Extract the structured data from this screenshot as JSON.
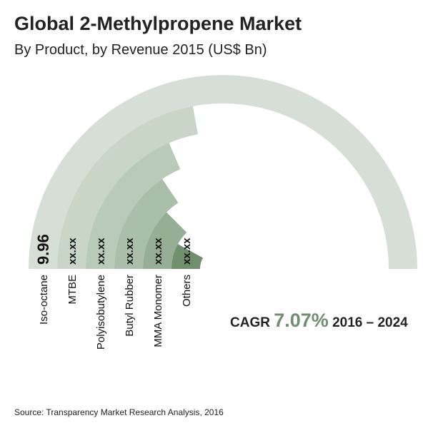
{
  "chart_data": {
    "type": "radial_bar",
    "title": "Global 2-Methylpropene Market",
    "subtitle": "By Product, by Revenue 2015 (US$ Bn)",
    "categories": [
      "Iso-octane",
      "MTBE",
      "Polyisobutylene",
      "Butyl Rubber",
      "MMA Monomer",
      "Others"
    ],
    "values": [
      9.96,
      4.4,
      3.7,
      3.1,
      2.5,
      1.6
    ],
    "value_labels": [
      "9.96",
      "xx.xx",
      "xx.xx",
      "xx.xx",
      "xx.xx",
      "xx.xx"
    ],
    "colors": [
      "#d5dfd5",
      "#c8d5c7",
      "#bacab9",
      "#aabeaa",
      "#97ae96",
      "#6f8f6d"
    ],
    "cagr": {
      "label": "CAGR",
      "value": "7.07%",
      "period": "2016 – 2024"
    },
    "source": "Source: Transparency Market Research Analysis, 2016"
  }
}
